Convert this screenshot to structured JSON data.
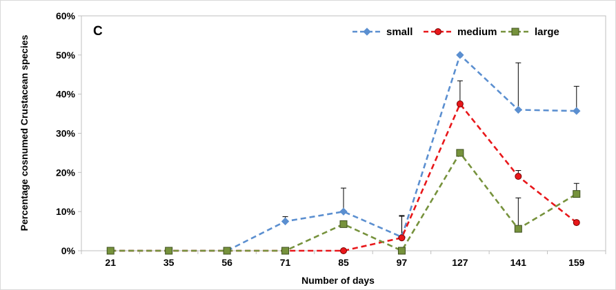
{
  "chart_data": {
    "type": "line",
    "panel_label": "C",
    "xlabel": "Number of days",
    "ylabel": "Percentage cosnumed Crustacean species",
    "categories": [
      "21",
      "35",
      "56",
      "71",
      "85",
      "97",
      "127",
      "141",
      "159"
    ],
    "ylim": [
      0,
      0.6
    ],
    "yticks": [
      "0%",
      "10%",
      "20%",
      "30%",
      "40%",
      "50%",
      "60%"
    ],
    "grid": false,
    "legend_position": "top-right",
    "series": [
      {
        "name": "small",
        "color": "#5B8FD0",
        "marker": "diamond",
        "values": [
          0,
          0,
          0,
          0.075,
          0.1,
          0.035,
          0.5,
          0.36,
          0.357
        ],
        "error_upper": [
          null,
          null,
          null,
          0.087,
          0.16,
          0.09,
          null,
          0.48,
          0.42
        ]
      },
      {
        "name": "medium",
        "color": "#E8171A",
        "marker": "circle",
        "values": [
          0,
          0,
          0,
          0,
          0,
          0.033,
          0.375,
          0.19,
          0.072
        ],
        "error_upper": [
          null,
          null,
          null,
          null,
          null,
          0.088,
          0.434,
          0.205,
          null
        ]
      },
      {
        "name": "large",
        "color": "#76923C",
        "marker": "square",
        "values": [
          0,
          0,
          0,
          0,
          0.068,
          0,
          0.25,
          0.056,
          0.145
        ],
        "error_upper": [
          null,
          null,
          null,
          null,
          null,
          null,
          null,
          0.135,
          0.172
        ]
      }
    ]
  }
}
